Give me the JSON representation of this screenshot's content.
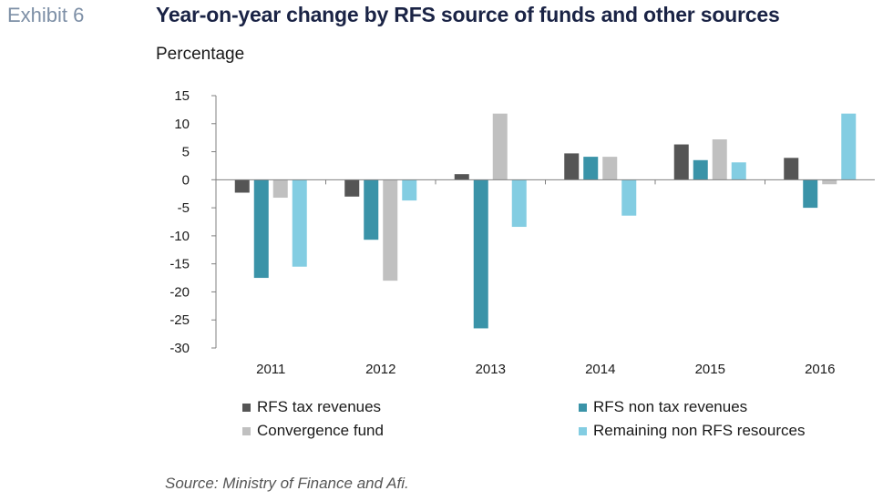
{
  "header": {
    "exhibit": "Exhibit 6",
    "title": "Year-on-year change by RFS source of funds and other sources",
    "unit": "Percentage"
  },
  "footer": {
    "source": "Source: Ministry of Finance and Afi."
  },
  "chart_data": {
    "type": "bar",
    "title": "Year-on-year change by RFS source of funds and other sources",
    "ylabel": "Percentage",
    "xlabel": "",
    "categories": [
      "2011",
      "2012",
      "2013",
      "2014",
      "2015",
      "2016"
    ],
    "ylim": [
      -30,
      15
    ],
    "yticks": [
      15,
      10,
      5,
      0,
      -5,
      -10,
      -15,
      -20,
      -25,
      -30
    ],
    "grid": false,
    "legend_position": "bottom",
    "series": [
      {
        "name": "RFS tax revenues",
        "color": "#555555",
        "values": [
          -2.3,
          -3.0,
          1.0,
          4.7,
          6.3,
          3.9
        ]
      },
      {
        "name": "RFS non tax revenues",
        "color": "#3a93a8",
        "values": [
          -17.5,
          -10.7,
          -26.5,
          4.1,
          3.5,
          -5.0
        ]
      },
      {
        "name": "Convergence fund",
        "color": "#c0c0c0",
        "values": [
          -3.2,
          -18.0,
          11.8,
          4.1,
          7.2,
          -0.8
        ]
      },
      {
        "name": "Remaining non RFS resources",
        "color": "#83cde2",
        "values": [
          -15.5,
          -3.7,
          -8.4,
          -6.4,
          3.1,
          11.8
        ]
      }
    ]
  }
}
